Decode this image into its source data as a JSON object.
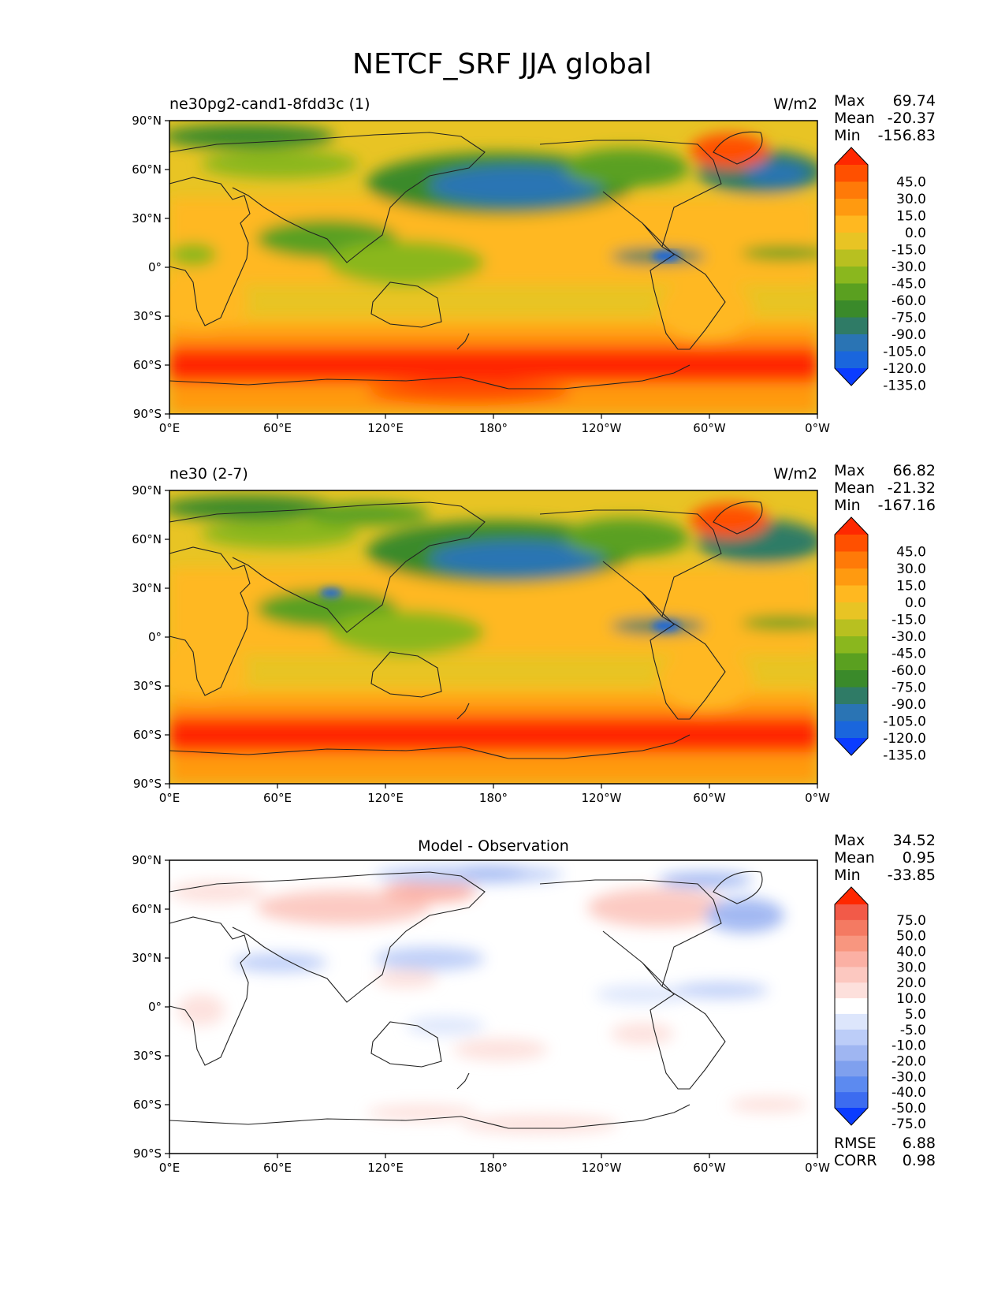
{
  "figure_title": "NETCF_SRF JJA global",
  "axis_ticks": {
    "x": [
      "0°E",
      "60°E",
      "120°E",
      "180°",
      "120°W",
      "60°W",
      "0°W"
    ],
    "y": [
      "90°N",
      "60°N",
      "30°N",
      "0°",
      "30°S",
      "60°S",
      "90°S"
    ]
  },
  "colors": {
    "main_scale": [
      "#0a3cff",
      "#1a66dd",
      "#2a74b4",
      "#2f7b66",
      "#3a8a2a",
      "#5aa020",
      "#8ab71e",
      "#b8c020",
      "#e8c424",
      "#ffb820",
      "#ff9a10",
      "#ff7a08",
      "#ff5000",
      "#ff2800"
    ],
    "diff_scale": [
      "#0a3cff",
      "#3c6cf0",
      "#5c8af0",
      "#7fa0ee",
      "#9fb6f2",
      "#bccdf8",
      "#dde6fc",
      "#ffffff",
      "#fde0dc",
      "#fcc8c0",
      "#fbb0a4",
      "#f8967f",
      "#f47a62",
      "#f25a48",
      "#ff2800"
    ]
  },
  "chart_data": [
    {
      "type": "heatmap",
      "title": "ne30pg2-cand1-8fdd3c (1)",
      "units": "W/m2",
      "stats": [
        {
          "label": "Max",
          "value": "69.74"
        },
        {
          "label": "Mean",
          "value": "-20.37"
        },
        {
          "label": "Min",
          "value": "-156.83"
        }
      ],
      "colorbar_levels": [
        "45.0",
        "30.0",
        "15.0",
        "0.0",
        "-15.0",
        "-30.0",
        "-45.0",
        "-60.0",
        "-75.0",
        "-90.0",
        "-105.0",
        "-120.0",
        "-135.0"
      ],
      "xlim": [
        0,
        360
      ],
      "ylim": [
        -90,
        90
      ]
    },
    {
      "type": "heatmap",
      "title": "ne30 (2-7)",
      "units": "W/m2",
      "stats": [
        {
          "label": "Max",
          "value": "66.82"
        },
        {
          "label": "Mean",
          "value": "-21.32"
        },
        {
          "label": "Min",
          "value": "-167.16"
        }
      ],
      "colorbar_levels": [
        "45.0",
        "30.0",
        "15.0",
        "0.0",
        "-15.0",
        "-30.0",
        "-45.0",
        "-60.0",
        "-75.0",
        "-90.0",
        "-105.0",
        "-120.0",
        "-135.0"
      ],
      "xlim": [
        0,
        360
      ],
      "ylim": [
        -90,
        90
      ]
    },
    {
      "type": "heatmap",
      "title": "Model - Observation",
      "units": "",
      "stats": [
        {
          "label": "Max",
          "value": "34.52"
        },
        {
          "label": "Mean",
          "value": "0.95"
        },
        {
          "label": "Min",
          "value": "-33.85"
        }
      ],
      "colorbar_levels": [
        "75.0",
        "50.0",
        "40.0",
        "30.0",
        "20.0",
        "10.0",
        "5.0",
        "-5.0",
        "-10.0",
        "-20.0",
        "-30.0",
        "-40.0",
        "-50.0",
        "-75.0"
      ],
      "metrics": [
        {
          "label": "RMSE",
          "value": "6.88"
        },
        {
          "label": "CORR",
          "value": "0.98"
        }
      ],
      "xlim": [
        0,
        360
      ],
      "ylim": [
        -90,
        90
      ]
    }
  ]
}
